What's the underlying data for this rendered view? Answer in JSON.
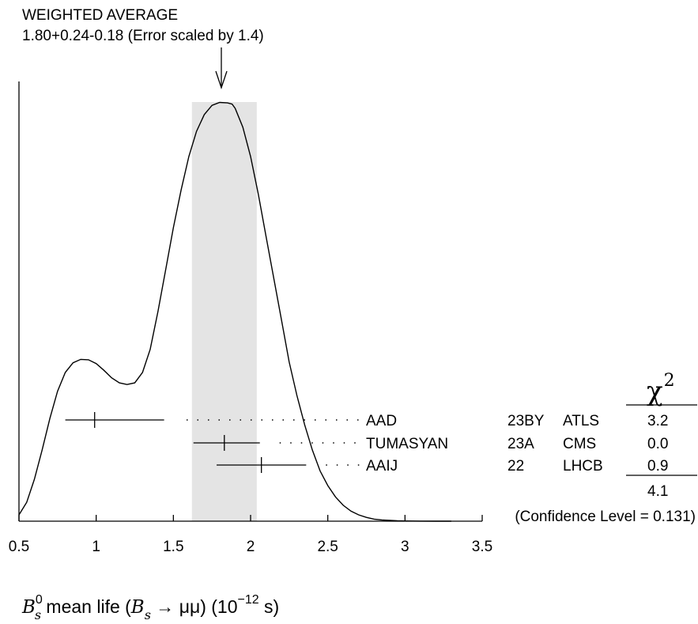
{
  "chart_data": {
    "type": "ideogram",
    "title": "WEIGHTED AVERAGE",
    "subtitle": "1.80+0.24-0.18 (Error scaled by 1.4)",
    "weighted_average": {
      "value": 1.8,
      "err_plus": 0.24,
      "err_minus": 0.18,
      "band": [
        1.62,
        2.04
      ]
    },
    "xlim": [
      0.5,
      3.5
    ],
    "x_ticks": [
      0.5,
      1,
      1.5,
      2,
      2.5,
      3,
      3.5
    ],
    "x_tick_labels": [
      "0.5",
      "1",
      "1.5",
      "2",
      "2.5",
      "3",
      "3.5"
    ],
    "xlabel": {
      "part1": "B",
      "part1_sup": "0",
      "part1_sub": "s",
      "part2": " mean life (",
      "part3": "B",
      "part3_sub": "s",
      "part4": " →  μμ) (10",
      "part4_sup": "−12",
      "part5": " s)"
    },
    "chi2_header": "χ",
    "chi2_header_sup": "2",
    "measurements": [
      {
        "author": "AAD",
        "ref": "23BY",
        "experiment": "ATLS",
        "value": 0.99,
        "err_low": 0.19,
        "err_high": 0.45,
        "chi2": "3.2"
      },
      {
        "author": "TUMASYAN",
        "ref": "23A",
        "experiment": "CMS",
        "value": 1.83,
        "err_low": 0.2,
        "err_high": 0.23,
        "chi2": "0.0"
      },
      {
        "author": "AAIJ",
        "ref": "22",
        "experiment": "LHCB",
        "value": 2.07,
        "err_low": 0.29,
        "err_high": 0.29,
        "chi2": "0.9"
      }
    ],
    "chi2_total": "4.1",
    "confidence_level": "(Confidence Level = 0.131)",
    "curve": {
      "x": [
        0.5,
        0.55,
        0.6,
        0.65,
        0.7,
        0.75,
        0.8,
        0.85,
        0.9,
        0.95,
        1.0,
        1.05,
        1.1,
        1.15,
        1.2,
        1.25,
        1.3,
        1.35,
        1.4,
        1.45,
        1.5,
        1.55,
        1.6,
        1.65,
        1.7,
        1.75,
        1.8,
        1.85,
        1.88,
        1.9,
        1.95,
        2.0,
        2.05,
        2.1,
        2.15,
        2.2,
        2.25,
        2.3,
        2.35,
        2.4,
        2.45,
        2.5,
        2.55,
        2.6,
        2.65,
        2.7,
        2.75,
        2.8,
        2.85,
        2.9,
        2.95,
        3.0,
        3.1,
        3.2,
        3.3
      ],
      "y": [
        0.015,
        0.045,
        0.1,
        0.17,
        0.245,
        0.31,
        0.355,
        0.378,
        0.386,
        0.385,
        0.376,
        0.36,
        0.342,
        0.33,
        0.326,
        0.33,
        0.355,
        0.41,
        0.5,
        0.6,
        0.7,
        0.79,
        0.87,
        0.93,
        0.97,
        0.992,
        0.999,
        0.998,
        0.995,
        0.985,
        0.94,
        0.87,
        0.78,
        0.68,
        0.58,
        0.48,
        0.38,
        0.3,
        0.23,
        0.17,
        0.12,
        0.085,
        0.058,
        0.038,
        0.024,
        0.015,
        0.009,
        0.005,
        0.003,
        0.0018,
        0.001,
        0.0006,
        0.0002,
        5e-05,
        0.0
      ]
    },
    "colors": {
      "band": "#e4e4e4",
      "line": "#000000"
    }
  }
}
